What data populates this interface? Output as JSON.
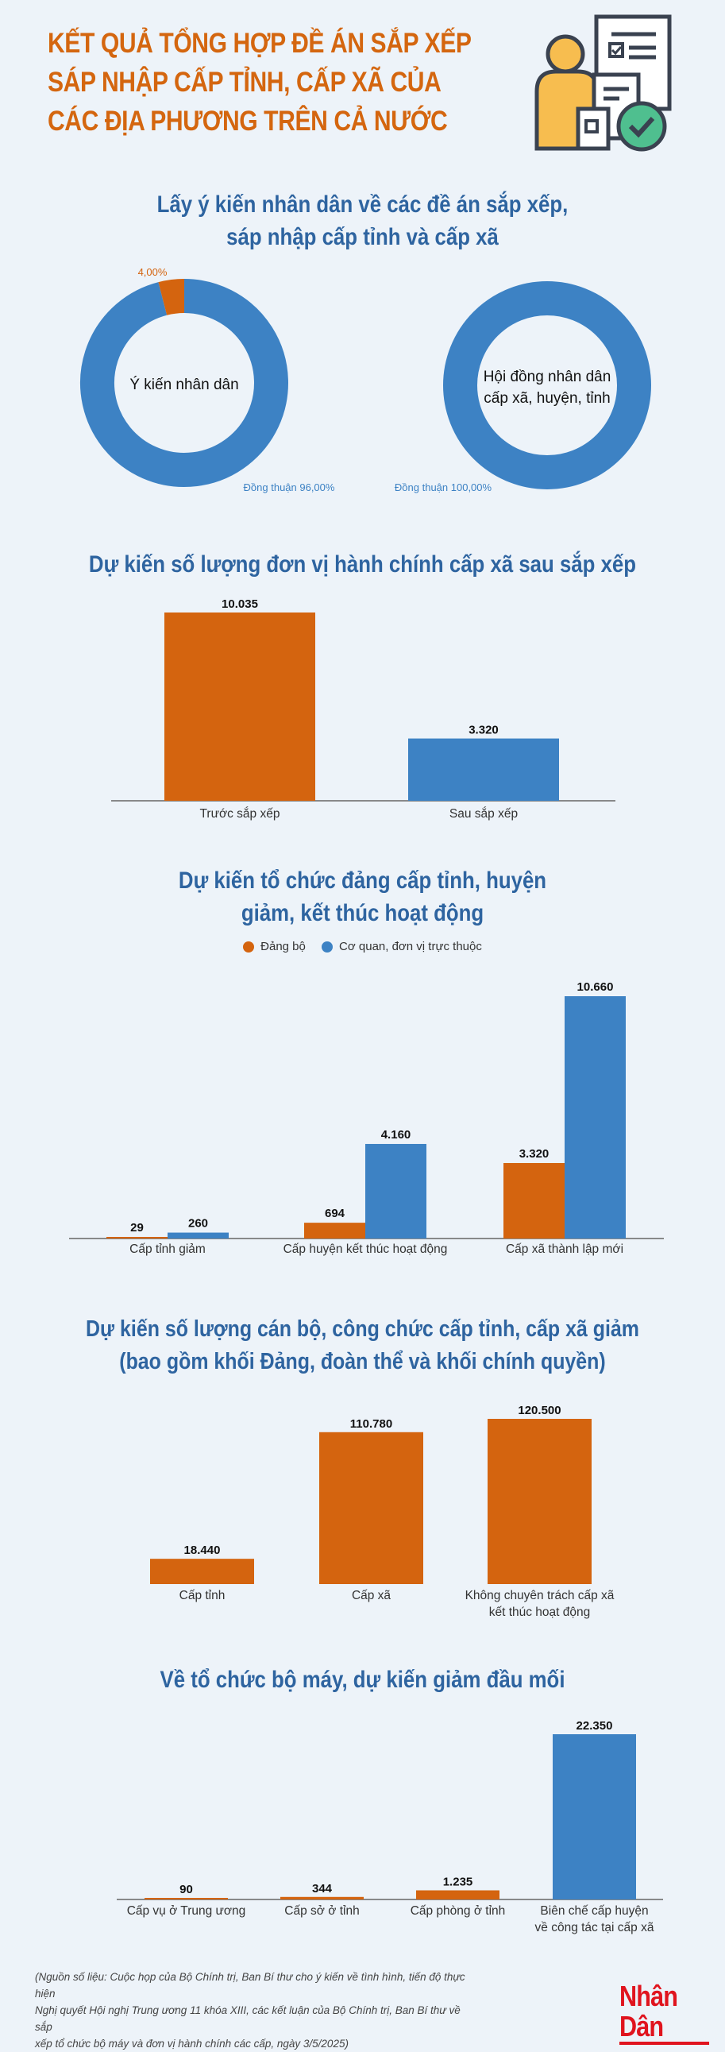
{
  "header": {
    "title_lines": [
      "KẾT QUẢ TỔNG HỢP ĐỀ ÁN SẮP XẾP",
      "SÁP NHẬP CẤP TỈNH, CẤP XÃ CỦA",
      "CÁC ĐỊA PHƯƠNG TRÊN CẢ NƯỚC"
    ],
    "icon": "person-document-check-icon"
  },
  "sections": [
    {
      "title_lines": [
        "Lấy ý kiến nhân dân về các đề án sắp xếp,",
        "sáp nhập cấp tỉnh và cấp xã"
      ]
    },
    {
      "title_lines": [
        "Dự kiến số lượng đơn vị hành chính cấp xã sau sắp xếp"
      ]
    },
    {
      "title_lines": [
        "Dự kiến tổ chức đảng cấp tỉnh, huyện",
        "giảm, kết thúc hoạt động"
      ]
    },
    {
      "title_lines": [
        "Dự kiến số lượng cán bộ, công chức cấp tỉnh, cấp xã giảm",
        "(bao gồm khối Đảng, đoàn thể và khối chính quyền)"
      ]
    },
    {
      "title_lines": [
        "Về tổ chức bộ máy, dự kiến giảm đầu mối"
      ]
    }
  ],
  "colors": {
    "orange": "#d4640f",
    "blue": "#3d82c4",
    "title_orange": "#d4660f",
    "title_blue": "#2e64a0",
    "background": "#edf3f9",
    "logo_red": "#e0141e"
  },
  "chart_data": [
    {
      "type": "pie",
      "donut": true,
      "center_label": [
        "Ý kiến nhân dân"
      ],
      "slices": [
        {
          "label": "Đồng thuận 96,00%",
          "value": 96,
          "color": "#3d82c4"
        },
        {
          "label": "4,00%",
          "value": 4,
          "color": "#d4640f"
        }
      ]
    },
    {
      "type": "pie",
      "donut": true,
      "center_label": [
        "Hội đồng nhân dân",
        "cấp xã, huyện, tỉnh"
      ],
      "slices": [
        {
          "label": "Đồng thuận 100,00%",
          "value": 100,
          "color": "#3d82c4"
        }
      ]
    },
    {
      "type": "bar",
      "categories": [
        [
          "Trước sắp xếp"
        ],
        [
          "Sau sắp xếp"
        ]
      ],
      "values": [
        10035,
        3320
      ],
      "data_labels": [
        "10.035",
        "3.320"
      ],
      "colors": [
        "#d4640f",
        "#3d82c4"
      ],
      "grid": false
    },
    {
      "type": "bar",
      "categories": [
        [
          "Cấp tỉnh giảm"
        ],
        [
          "Cấp huyện kết thúc hoạt động"
        ],
        [
          "Cấp xã thành lập mới"
        ]
      ],
      "legend_placement": "top",
      "series": [
        {
          "name": "Đảng bộ",
          "values": [
            29,
            694,
            3320
          ],
          "data_labels": [
            "29",
            "694",
            "3.320"
          ],
          "color": "#d4640f"
        },
        {
          "name": "Cơ quan, đơn vị trực thuộc",
          "values": [
            260,
            4160,
            10660
          ],
          "data_labels": [
            "260",
            "4.160",
            "10.660"
          ],
          "color": "#3d82c4"
        }
      ],
      "grid": false
    },
    {
      "type": "bar",
      "categories": [
        [
          "Cấp tỉnh"
        ],
        [
          "Cấp xã"
        ],
        [
          "Không chuyên trách cấp xã",
          "kết thúc hoạt động"
        ]
      ],
      "values": [
        18440,
        110780,
        120500
      ],
      "data_labels": [
        "18.440",
        "110.780",
        "120.500"
      ],
      "colors": [
        "#d4640f",
        "#d4640f",
        "#d4640f"
      ],
      "grid": false
    },
    {
      "type": "bar",
      "categories": [
        [
          "Cấp vụ ở Trung ương"
        ],
        [
          "Cấp sở ở tỉnh"
        ],
        [
          "Cấp phòng ở tỉnh"
        ],
        [
          "Biên chế cấp huyện",
          "về công tác tại cấp xã"
        ]
      ],
      "values": [
        90,
        344,
        1235,
        22350
      ],
      "data_labels": [
        "90",
        "344",
        "1.235",
        "22.350"
      ],
      "colors": [
        "#d4640f",
        "#d4640f",
        "#d4640f",
        "#3d82c4"
      ],
      "grid": false
    }
  ],
  "footer": {
    "source_lines": [
      "(Nguồn số liệu: Cuộc họp của Bộ Chính trị, Ban Bí thư cho ý kiến về tình hình, tiến độ thực hiện",
      "Nghị quyết Hội nghị Trung ương 11 khóa XIII, các kết luận của Bộ Chính trị, Ban Bí thư về sắp",
      "xếp tổ chức bộ máy và đơn vị hành chính các cấp, ngày 3/5/2025)"
    ],
    "logo": "Nhân Dân"
  }
}
